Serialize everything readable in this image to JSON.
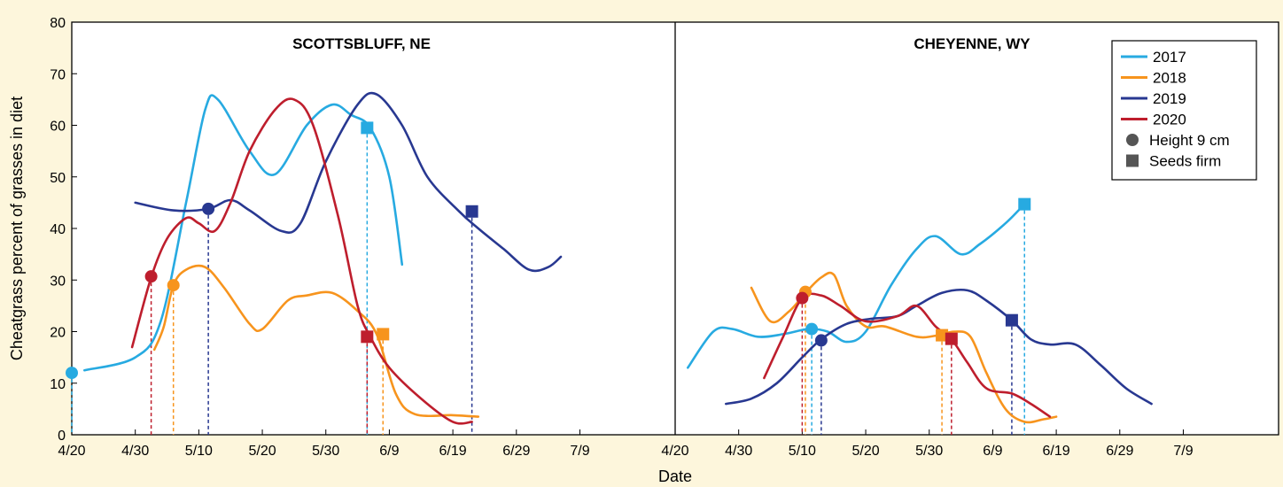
{
  "chart_data": {
    "type": "line",
    "xlabel": "Date",
    "ylabel": "Cheatgrass percent of grasses in diet",
    "ylim": [
      0,
      80
    ],
    "yticks": [
      0,
      10,
      20,
      30,
      40,
      50,
      60,
      70,
      80
    ],
    "xlim_days": [
      0,
      95
    ],
    "x_start_label": "4/20",
    "xtick_labels": [
      "4/20",
      "4/30",
      "5/10",
      "5/20",
      "5/30",
      "6/9",
      "6/19",
      "6/29",
      "7/9"
    ],
    "xtick_days": [
      0,
      10,
      20,
      30,
      40,
      50,
      60,
      70,
      80
    ],
    "legend": {
      "position": "top-right",
      "entries": [
        {
          "label": "2017",
          "kind": "line",
          "color": "#27aae1"
        },
        {
          "label": "2018",
          "kind": "line",
          "color": "#f7941d"
        },
        {
          "label": "2019",
          "kind": "line",
          "color": "#283891"
        },
        {
          "label": "2020",
          "kind": "line",
          "color": "#be1e2d"
        },
        {
          "label": "Height 9 cm",
          "kind": "circle",
          "color": "#555555"
        },
        {
          "label": "Seeds firm",
          "kind": "square",
          "color": "#555555"
        }
      ]
    },
    "panels": [
      {
        "title": "SCOTTSBLUFF, NE",
        "series": [
          {
            "name": "2017",
            "color": "#27aae1",
            "points": [
              [
                2,
                12.5
              ],
              [
                10,
                15
              ],
              [
                14,
                22
              ],
              [
                18,
                45
              ],
              [
                21,
                63
              ],
              [
                23,
                65
              ],
              [
                28,
                55
              ],
              [
                32,
                50.5
              ],
              [
                37,
                60
              ],
              [
                41,
                64
              ],
              [
                44,
                62
              ],
              [
                47,
                59.5
              ],
              [
                50,
                50
              ],
              [
                52,
                33
              ]
            ],
            "markers": [
              {
                "shape": "circle",
                "day": 0,
                "value": 12
              },
              {
                "shape": "square",
                "day": 46.5,
                "value": 59.5
              }
            ]
          },
          {
            "name": "2018",
            "color": "#f7941d",
            "points": [
              [
                13,
                16.5
              ],
              [
                14.5,
                21
              ],
              [
                16,
                29
              ],
              [
                18,
                32
              ],
              [
                21,
                32.5
              ],
              [
                24,
                28.5
              ],
              [
                28,
                21.5
              ],
              [
                30,
                20.5
              ],
              [
                34,
                26
              ],
              [
                37,
                27
              ],
              [
                41,
                27.5
              ],
              [
                45,
                24
              ],
              [
                48,
                19.5
              ],
              [
                51,
                8
              ],
              [
                54,
                4
              ],
              [
                60,
                3.8
              ],
              [
                64,
                3.5
              ]
            ],
            "markers": [
              {
                "shape": "circle",
                "day": 16,
                "value": 29
              },
              {
                "shape": "square",
                "day": 49,
                "value": 19.5
              }
            ]
          },
          {
            "name": "2019",
            "color": "#283891",
            "points": [
              [
                10,
                45
              ],
              [
                16,
                43.5
              ],
              [
                21.5,
                43.8
              ],
              [
                25,
                45.5
              ],
              [
                28,
                43.5
              ],
              [
                33,
                39.5
              ],
              [
                36,
                41
              ],
              [
                40,
                53
              ],
              [
                45,
                64
              ],
              [
                48,
                66
              ],
              [
                52,
                60
              ],
              [
                56,
                50
              ],
              [
                61,
                43.3
              ],
              [
                64,
                40
              ],
              [
                68,
                36
              ],
              [
                72,
                32
              ],
              [
                75,
                32.5
              ],
              [
                77,
                34.5
              ]
            ],
            "markers": [
              {
                "shape": "circle",
                "day": 21.5,
                "value": 43.8
              },
              {
                "shape": "square",
                "day": 63,
                "value": 43.3
              }
            ]
          },
          {
            "name": "2020",
            "color": "#be1e2d",
            "points": [
              [
                9.5,
                17
              ],
              [
                12.5,
                30.5
              ],
              [
                15,
                38
              ],
              [
                18,
                42
              ],
              [
                20,
                41
              ],
              [
                22.5,
                39.5
              ],
              [
                25,
                45
              ],
              [
                28,
                55
              ],
              [
                32,
                63
              ],
              [
                35,
                65
              ],
              [
                38,
                60
              ],
              [
                42,
                42
              ],
              [
                45,
                25
              ],
              [
                47,
                19
              ],
              [
                50,
                13
              ],
              [
                55,
                7
              ],
              [
                60,
                2.5
              ],
              [
                63,
                2.5
              ]
            ],
            "markers": [
              {
                "shape": "circle",
                "day": 12.5,
                "value": 30.7
              },
              {
                "shape": "square",
                "day": 46.5,
                "value": 19
              }
            ]
          }
        ]
      },
      {
        "title": "CHEYENNE, WY",
        "series": [
          {
            "name": "2017",
            "color": "#27aae1",
            "points": [
              [
                2,
                13
              ],
              [
                6,
                20
              ],
              [
                9,
                20.5
              ],
              [
                13,
                19
              ],
              [
                17,
                19.5
              ],
              [
                21,
                20.5
              ],
              [
                24,
                20
              ],
              [
                27,
                18
              ],
              [
                30,
                20
              ],
              [
                34,
                29
              ],
              [
                38,
                36
              ],
              [
                41,
                38.5
              ],
              [
                45,
                35
              ],
              [
                48,
                37
              ],
              [
                52,
                41
              ],
              [
                55,
                44.7
              ]
            ],
            "markers": [
              {
                "shape": "circle",
                "day": 21.5,
                "value": 20.5
              },
              {
                "shape": "square",
                "day": 55,
                "value": 44.7
              }
            ]
          },
          {
            "name": "2018",
            "color": "#f7941d",
            "points": [
              [
                12,
                28.5
              ],
              [
                15,
                22
              ],
              [
                18,
                24
              ],
              [
                20.5,
                27.5
              ],
              [
                23,
                30.5
              ],
              [
                25,
                31
              ],
              [
                27,
                25
              ],
              [
                30,
                21
              ],
              [
                33,
                21
              ],
              [
                38,
                19
              ],
              [
                41,
                19.2
              ],
              [
                44,
                20
              ],
              [
                46.5,
                19
              ],
              [
                49,
                12
              ],
              [
                52,
                5
              ],
              [
                55,
                2.5
              ],
              [
                58,
                3
              ],
              [
                60,
                3.5
              ]
            ],
            "markers": [
              {
                "shape": "circle",
                "day": 20.5,
                "value": 27.7
              },
              {
                "shape": "square",
                "day": 42,
                "value": 19.3
              }
            ]
          },
          {
            "name": "2019",
            "color": "#283891",
            "points": [
              [
                8,
                6
              ],
              [
                12,
                7
              ],
              [
                16,
                10
              ],
              [
                20,
                15
              ],
              [
                23,
                18.5
              ],
              [
                27,
                21.5
              ],
              [
                31,
                22.5
              ],
              [
                35,
                23
              ],
              [
                38,
                25
              ],
              [
                42,
                27.5
              ],
              [
                46,
                28
              ],
              [
                49,
                26
              ],
              [
                53,
                22.2
              ],
              [
                56,
                18.5
              ],
              [
                59,
                17.5
              ],
              [
                63,
                17.5
              ],
              [
                67,
                13.5
              ],
              [
                71,
                9
              ],
              [
                75,
                6
              ]
            ],
            "markers": [
              {
                "shape": "circle",
                "day": 23,
                "value": 18.3
              },
              {
                "shape": "square",
                "day": 53,
                "value": 22.2
              }
            ]
          },
          {
            "name": "2020",
            "color": "#be1e2d",
            "points": [
              [
                14,
                11
              ],
              [
                17,
                19
              ],
              [
                20,
                26.5
              ],
              [
                23,
                27
              ],
              [
                26,
                25
              ],
              [
                30,
                22
              ],
              [
                35,
                23
              ],
              [
                38,
                25
              ],
              [
                41,
                21
              ],
              [
                43.5,
                18.5
              ],
              [
                46,
                14
              ],
              [
                49,
                9
              ],
              [
                53,
                8
              ],
              [
                56,
                6
              ],
              [
                59,
                3.5
              ]
            ],
            "markers": [
              {
                "shape": "circle",
                "day": 20,
                "value": 26.5
              },
              {
                "shape": "square",
                "day": 43.5,
                "value": 18.6
              }
            ]
          }
        ]
      }
    ]
  }
}
